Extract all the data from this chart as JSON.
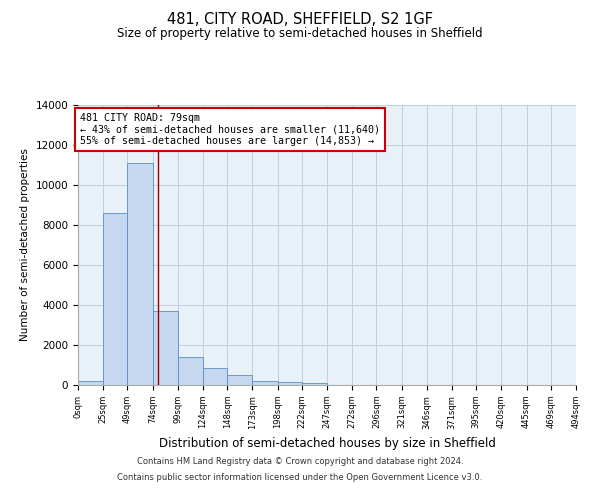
{
  "title": "481, CITY ROAD, SHEFFIELD, S2 1GF",
  "subtitle": "Size of property relative to semi-detached houses in Sheffield",
  "xlabel": "Distribution of semi-detached houses by size in Sheffield",
  "ylabel": "Number of semi-detached properties",
  "annotation_line1": "481 CITY ROAD: 79sqm",
  "annotation_line2": "← 43% of semi-detached houses are smaller (11,640)",
  "annotation_line3": "55% of semi-detached houses are larger (14,853) →",
  "property_size": 79,
  "bin_edges": [
    0,
    25,
    49,
    74,
    99,
    124,
    148,
    173,
    198,
    222,
    247,
    272,
    296,
    321,
    346,
    371,
    395,
    420,
    445,
    469,
    494
  ],
  "bar_heights": [
    200,
    8600,
    11100,
    3700,
    1400,
    870,
    480,
    200,
    130,
    90,
    0,
    0,
    0,
    0,
    0,
    0,
    0,
    0,
    0,
    0
  ],
  "bar_color": "#c5d8ef",
  "bar_edge_color": "#5b8ec4",
  "red_line_color": "#9b0000",
  "annotation_box_color": "#ffffff",
  "annotation_box_edge_color": "#cc0000",
  "background_color": "#ffffff",
  "plot_bg_color": "#e8f0f8",
  "grid_color": "#c0d0e0",
  "ylim": [
    0,
    14000
  ],
  "yticks": [
    0,
    2000,
    4000,
    6000,
    8000,
    10000,
    12000,
    14000
  ],
  "tick_labels": [
    "0sqm",
    "25sqm",
    "49sqm",
    "74sqm",
    "99sqm",
    "124sqm",
    "148sqm",
    "173sqm",
    "198sqm",
    "222sqm",
    "247sqm",
    "272sqm",
    "296sqm",
    "321sqm",
    "346sqm",
    "371sqm",
    "395sqm",
    "420sqm",
    "445sqm",
    "469sqm",
    "494sqm"
  ],
  "footnote1": "Contains HM Land Registry data © Crown copyright and database right 2024.",
  "footnote2": "Contains public sector information licensed under the Open Government Licence v3.0."
}
